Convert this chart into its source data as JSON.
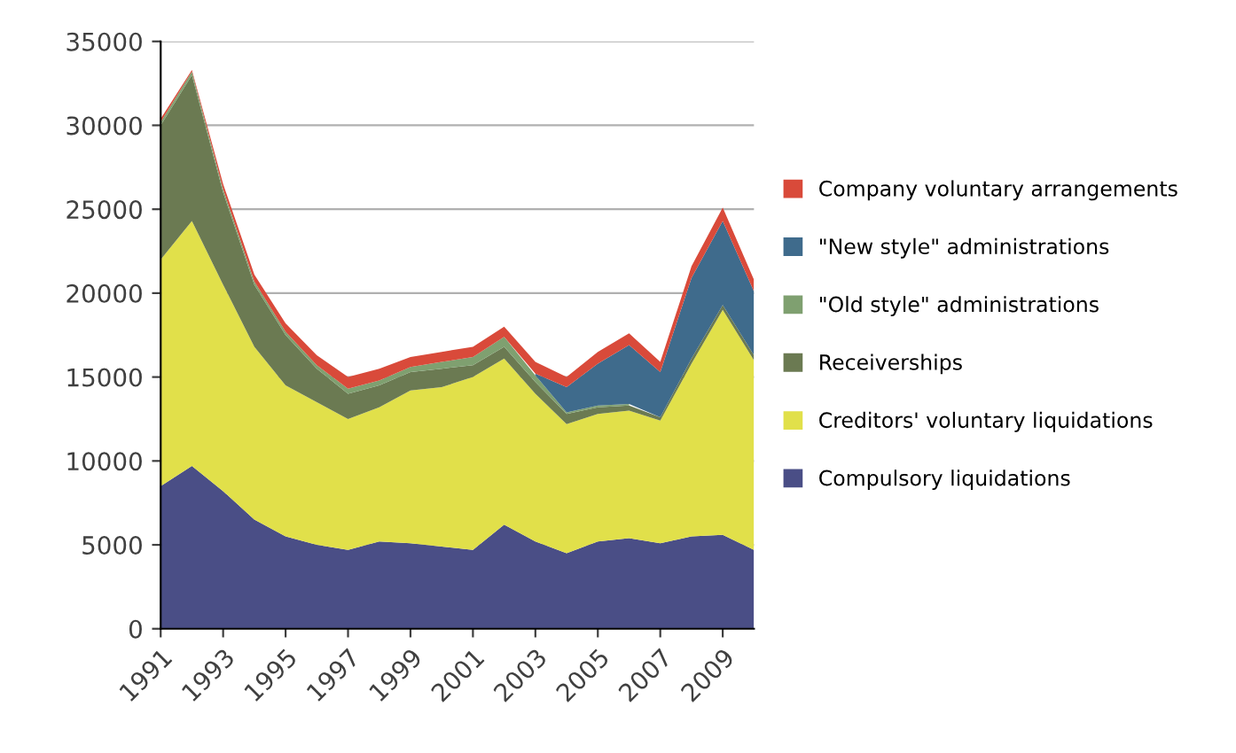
{
  "chart_data": {
    "type": "area",
    "stacked": true,
    "x": [
      1991,
      1992,
      1993,
      1994,
      1995,
      1996,
      1997,
      1998,
      1999,
      2000,
      2001,
      2002,
      2003,
      2004,
      2005,
      2006,
      2007,
      2008,
      2009,
      2010
    ],
    "series": [
      {
        "name": "Compulsory liquidations",
        "color": "#4a4e86",
        "values": [
          8500,
          9700,
          8200,
          6500,
          5500,
          5000,
          4700,
          5200,
          5100,
          4900,
          4700,
          6200,
          5200,
          4500,
          5200,
          5400,
          5100,
          5500,
          5600,
          4700
        ]
      },
      {
        "name": "Creditors' voluntary liquidations",
        "color": "#e1e04a",
        "values": [
          13500,
          14600,
          12300,
          10300,
          9000,
          8500,
          7800,
          8000,
          9100,
          9500,
          10300,
          9900,
          8800,
          7700,
          7600,
          7600,
          7300,
          10300,
          13400,
          11300
        ]
      },
      {
        "name": "Receiverships",
        "color": "#6b7a52",
        "values": [
          8000,
          8700,
          5500,
          3700,
          3000,
          2000,
          1500,
          1300,
          1100,
          1100,
          700,
          700,
          700,
          600,
          400,
          300,
          200,
          300,
          300,
          300
        ]
      },
      {
        "name": "\"Old style\" administrations",
        "color": "#7fa070",
        "values": [
          200,
          200,
          200,
          200,
          200,
          200,
          300,
          300,
          300,
          400,
          500,
          600,
          400,
          100,
          100,
          100,
          null,
          null,
          null,
          null
        ]
      },
      {
        "name": "\"New style\" administrations",
        "color": "#3f6b8c",
        "values": [
          null,
          null,
          null,
          null,
          null,
          null,
          null,
          null,
          null,
          null,
          null,
          null,
          100,
          1500,
          2500,
          3500,
          2700,
          4800,
          5000,
          3800
        ]
      },
      {
        "name": "Company voluntary arrangements",
        "color": "#d94a3a",
        "values": [
          200,
          100,
          300,
          400,
          500,
          600,
          700,
          700,
          600,
          600,
          600,
          600,
          700,
          600,
          700,
          700,
          600,
          700,
          800,
          700
        ]
      }
    ],
    "xlim": [
      1991,
      2010
    ],
    "xticks": [
      1991,
      1993,
      1995,
      1997,
      1999,
      2001,
      2003,
      2005,
      2007,
      2009
    ],
    "ylim": [
      0,
      35000
    ],
    "yticks": [
      0,
      5000,
      10000,
      15000,
      20000,
      25000,
      30000,
      35000
    ],
    "grid": "y",
    "legend": "right"
  }
}
